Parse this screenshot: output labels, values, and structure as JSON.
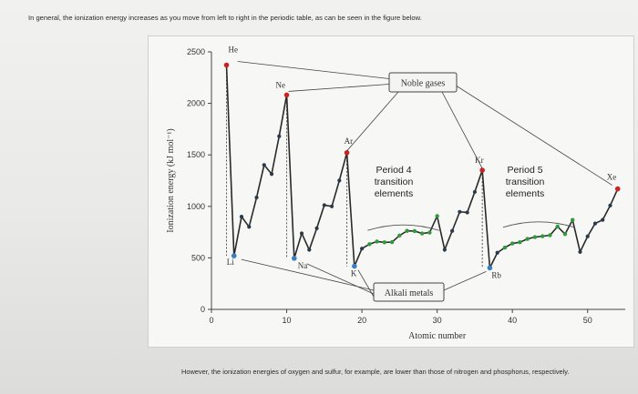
{
  "intro_text": "In general, the ionization energy increases as you move from left to right in the periodic table, as can be seen in the figure below.",
  "outro_text": "However, the ionization energies of oxygen and sulfur, for example, are lower than those of nitrogen and phosphorus, respectively.",
  "colors": {
    "line": "#2a2a2a",
    "main_point": "#2a3a4a",
    "noble_point": "#cc2222",
    "alkali_point": "#3a7fc2",
    "transition_point": "#2f9a3a"
  },
  "chart_data": {
    "type": "line",
    "xlabel": "Atomic number",
    "ylabel": "Ionization energy (kJ mol⁻¹)",
    "xlim": [
      0,
      55
    ],
    "ylim": [
      0,
      2500
    ],
    "x_ticks": [
      "0",
      "10",
      "20",
      "30",
      "40",
      "50"
    ],
    "y_ticks": [
      "0",
      "500",
      "1000",
      "1500",
      "2000",
      "2500"
    ],
    "x_tick_values": [
      0,
      10,
      20,
      30,
      40,
      50
    ],
    "y_tick_values": [
      0,
      500,
      1000,
      1500,
      2000,
      2500
    ],
    "series": [
      {
        "x": [
          2,
          3,
          4,
          5,
          6,
          7,
          8,
          9,
          10,
          11,
          12,
          13,
          14,
          15,
          16,
          17,
          18,
          19,
          20,
          21,
          22,
          23,
          24,
          25,
          26,
          27,
          28,
          29,
          30,
          31,
          32,
          33,
          34,
          35,
          36,
          37,
          38,
          39,
          40,
          41,
          42,
          43,
          44,
          45,
          46,
          47,
          48,
          49,
          50,
          51,
          52,
          53,
          54
        ],
        "values": [
          2372,
          520,
          900,
          801,
          1086,
          1402,
          1314,
          1681,
          2081,
          496,
          738,
          578,
          787,
          1012,
          1000,
          1251,
          1521,
          419,
          590,
          633,
          659,
          651,
          653,
          717,
          762,
          760,
          737,
          746,
          906,
          579,
          762,
          947,
          941,
          1140,
          1351,
          403,
          550,
          600,
          640,
          652,
          684,
          702,
          710,
          720,
          804,
          731,
          868,
          558,
          709,
          834,
          869,
          1008,
          1170
        ]
      }
    ],
    "element_labels": [
      {
        "text": "He",
        "x": 2,
        "y": 2372
      },
      {
        "text": "Ne",
        "x": 10,
        "y": 2081
      },
      {
        "text": "Ar",
        "x": 18,
        "y": 1521
      },
      {
        "text": "Kr",
        "x": 36,
        "y": 1351
      },
      {
        "text": "Xe",
        "x": 54,
        "y": 1170
      },
      {
        "text": "Li",
        "x": 3,
        "y": 520
      },
      {
        "text": "Na",
        "x": 11,
        "y": 496
      },
      {
        "text": "K",
        "x": 19,
        "y": 419
      },
      {
        "text": "Rb",
        "x": 37,
        "y": 403
      }
    ],
    "annotations": {
      "noble_gases": "Noble gases",
      "alkali_metals": "Alkali metals",
      "period4": [
        "Period 4",
        "transition",
        "elements"
      ],
      "period5": [
        "Period 5",
        "transition",
        "elements"
      ]
    }
  }
}
